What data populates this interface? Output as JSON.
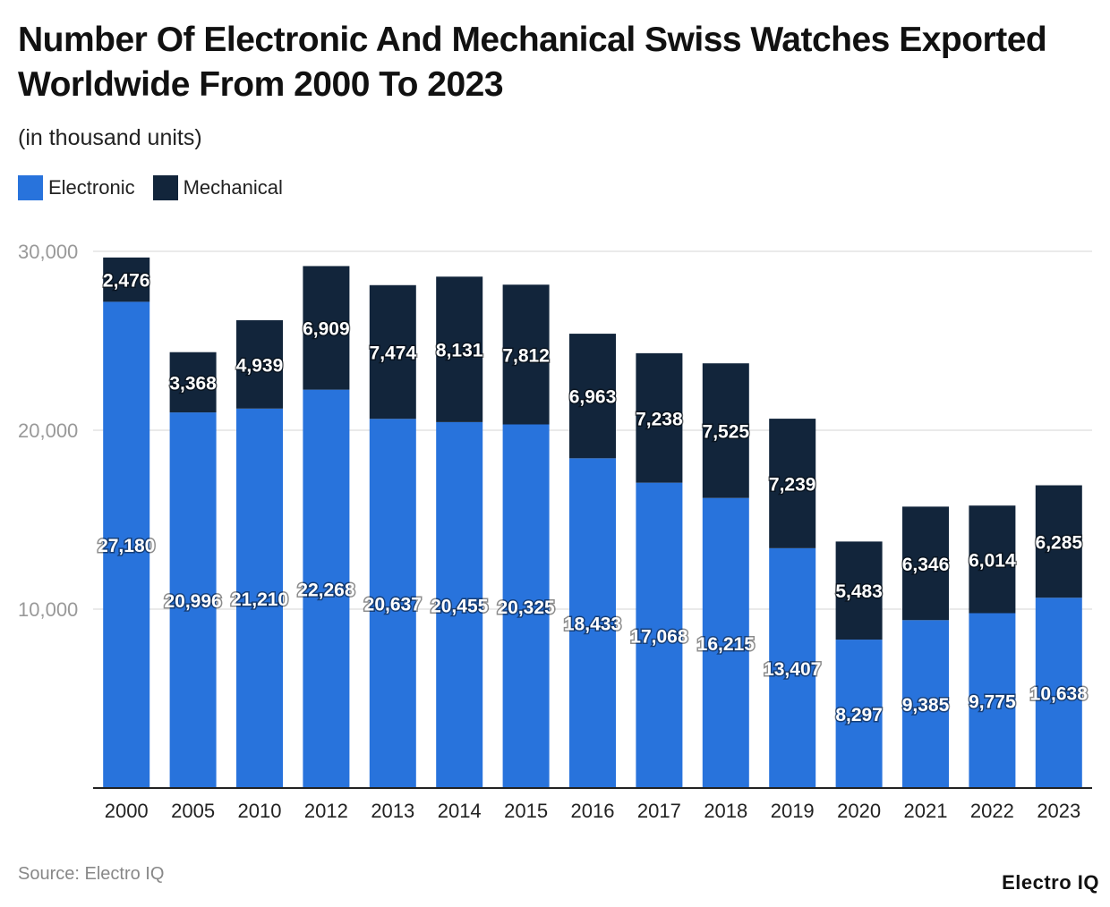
{
  "chart_data": {
    "type": "bar",
    "stacked": true,
    "title": "Number Of Electronic And Mechanical Swiss Watches Exported Worldwide From 2000 To 2023",
    "subtitle": "(in thousand units)",
    "categories": [
      "2000",
      "2005",
      "2010",
      "2012",
      "2013",
      "2014",
      "2015",
      "2016",
      "2017",
      "2018",
      "2019",
      "2020",
      "2021",
      "2022",
      "2023"
    ],
    "series": [
      {
        "name": "Electronic",
        "color": "#2873dc",
        "values": [
          27180,
          20996,
          21210,
          22268,
          20637,
          20455,
          20325,
          18433,
          17068,
          16215,
          13407,
          8297,
          9385,
          9775,
          10638
        ]
      },
      {
        "name": "Mechanical",
        "color": "#12253b",
        "values": [
          2476,
          3368,
          4939,
          6909,
          7474,
          8131,
          7812,
          6963,
          7238,
          7525,
          7239,
          5483,
          6346,
          6014,
          6285
        ]
      }
    ],
    "ylim": [
      0,
      30000
    ],
    "yticks": [
      "10,000",
      "20,000",
      "30,000"
    ],
    "ytick_values": [
      10000,
      20000,
      30000
    ],
    "grid": true,
    "legend_position": "top-left"
  },
  "source": "Source: Electro IQ",
  "logo": "Electro IQ"
}
